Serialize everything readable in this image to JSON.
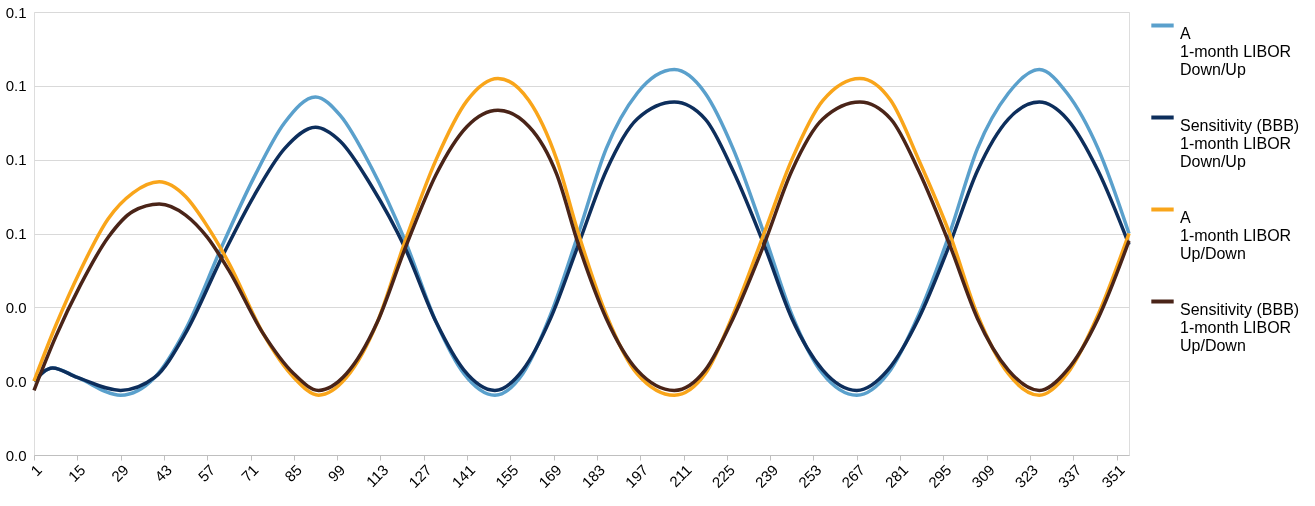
{
  "chart_data": {
    "type": "line",
    "legend": "right",
    "grid": "y",
    "line_style": "solid",
    "marker": "none",
    "xlim": [
      1,
      355
    ],
    "xticks": [
      1,
      15,
      29,
      43,
      57,
      71,
      85,
      99,
      113,
      127,
      141,
      155,
      169,
      183,
      197,
      211,
      225,
      239,
      253,
      267,
      281,
      295,
      309,
      323,
      337,
      351
    ],
    "ylim": [
      0,
      0.12
    ],
    "yticks": [
      {
        "value": 0,
        "label": "0.0"
      },
      {
        "value": 0.02,
        "label": "0.0"
      },
      {
        "value": 0.04,
        "label": "0.0"
      },
      {
        "value": 0.06,
        "label": "0.1"
      },
      {
        "value": 0.08,
        "label": "0.1"
      },
      {
        "value": 0.1,
        "label": "0.1"
      },
      {
        "value": 0.12,
        "label": "0.1"
      }
    ],
    "series": [
      {
        "name": "A\n1-month LIBOR\nDown/Up",
        "color": "#5aa0cc",
        "x": [
          1,
          7,
          15,
          29,
          40,
          50,
          62,
          72,
          82,
          92,
          100,
          110,
          121,
          131,
          140,
          150,
          159,
          168,
          177,
          186,
          196,
          208,
          218,
          227,
          237,
          246,
          256,
          267,
          277,
          287,
          297,
          306,
          316,
          326,
          335,
          345,
          355
        ],
        "values": [
          0.02,
          0.0236,
          0.021,
          0.0162,
          0.021,
          0.034,
          0.057,
          0.075,
          0.09,
          0.097,
          0.092,
          0.078,
          0.058,
          0.036,
          0.022,
          0.0162,
          0.022,
          0.038,
          0.06,
          0.083,
          0.098,
          0.1044,
          0.098,
          0.083,
          0.06,
          0.038,
          0.022,
          0.0162,
          0.022,
          0.038,
          0.06,
          0.083,
          0.098,
          0.1044,
          0.098,
          0.083,
          0.06
        ]
      },
      {
        "name": "Sensitivity (BBB)\n1-month LIBOR\nDown/Up",
        "color": "#0d2e5c",
        "x": [
          1,
          7,
          15,
          29,
          40,
          50,
          62,
          72,
          82,
          92,
          100,
          110,
          121,
          131,
          140,
          150,
          159,
          168,
          177,
          186,
          196,
          208,
          218,
          227,
          237,
          246,
          256,
          267,
          277,
          287,
          297,
          306,
          316,
          326,
          335,
          345,
          355
        ],
        "values": [
          0.02,
          0.0236,
          0.021,
          0.0175,
          0.021,
          0.033,
          0.054,
          0.07,
          0.083,
          0.0888,
          0.085,
          0.073,
          0.056,
          0.036,
          0.023,
          0.0175,
          0.023,
          0.037,
          0.057,
          0.077,
          0.091,
          0.0956,
          0.091,
          0.077,
          0.057,
          0.037,
          0.023,
          0.0175,
          0.023,
          0.037,
          0.057,
          0.077,
          0.091,
          0.0956,
          0.091,
          0.077,
          0.057
        ]
      },
      {
        "name": "A\n1-month LIBOR\nUp/Down",
        "color": "#f9a51a",
        "x": [
          1,
          8,
          16,
          25,
          33,
          41.5,
          50,
          57,
          64,
          75,
          85,
          93,
          102,
          112,
          121,
          131,
          141,
          151,
          161,
          170,
          177,
          186,
          196,
          208,
          218,
          227,
          237,
          246,
          256,
          268,
          278,
          287,
          297,
          306,
          316,
          326,
          335,
          345,
          355
        ],
        "values": [
          0.02,
          0.035,
          0.05,
          0.064,
          0.071,
          0.074,
          0.07,
          0.062,
          0.052,
          0.033,
          0.021,
          0.0162,
          0.021,
          0.036,
          0.058,
          0.08,
          0.096,
          0.102,
          0.096,
          0.08,
          0.06,
          0.038,
          0.022,
          0.0162,
          0.022,
          0.038,
          0.06,
          0.08,
          0.096,
          0.102,
          0.096,
          0.08,
          0.06,
          0.038,
          0.022,
          0.0162,
          0.022,
          0.038,
          0.06
        ]
      },
      {
        "name": "Sensitivity (BBB)\n1-month LIBOR\nUp/Down",
        "color": "#4a2418",
        "x": [
          1,
          8,
          16,
          25,
          33,
          41.5,
          50,
          57,
          64,
          75,
          85,
          93,
          102,
          112,
          121,
          131,
          141,
          151,
          161,
          170,
          177,
          186,
          196,
          208,
          218,
          227,
          237,
          246,
          256,
          268,
          278,
          287,
          297,
          306,
          316,
          326,
          335,
          345,
          355
        ],
        "values": [
          0.0175,
          0.032,
          0.046,
          0.059,
          0.066,
          0.068,
          0.065,
          0.059,
          0.05,
          0.033,
          0.022,
          0.0175,
          0.022,
          0.036,
          0.056,
          0.076,
          0.089,
          0.0934,
          0.089,
          0.076,
          0.057,
          0.037,
          0.023,
          0.0175,
          0.023,
          0.037,
          0.057,
          0.077,
          0.091,
          0.0956,
          0.091,
          0.077,
          0.057,
          0.037,
          0.023,
          0.0175,
          0.023,
          0.037,
          0.058
        ]
      }
    ]
  }
}
